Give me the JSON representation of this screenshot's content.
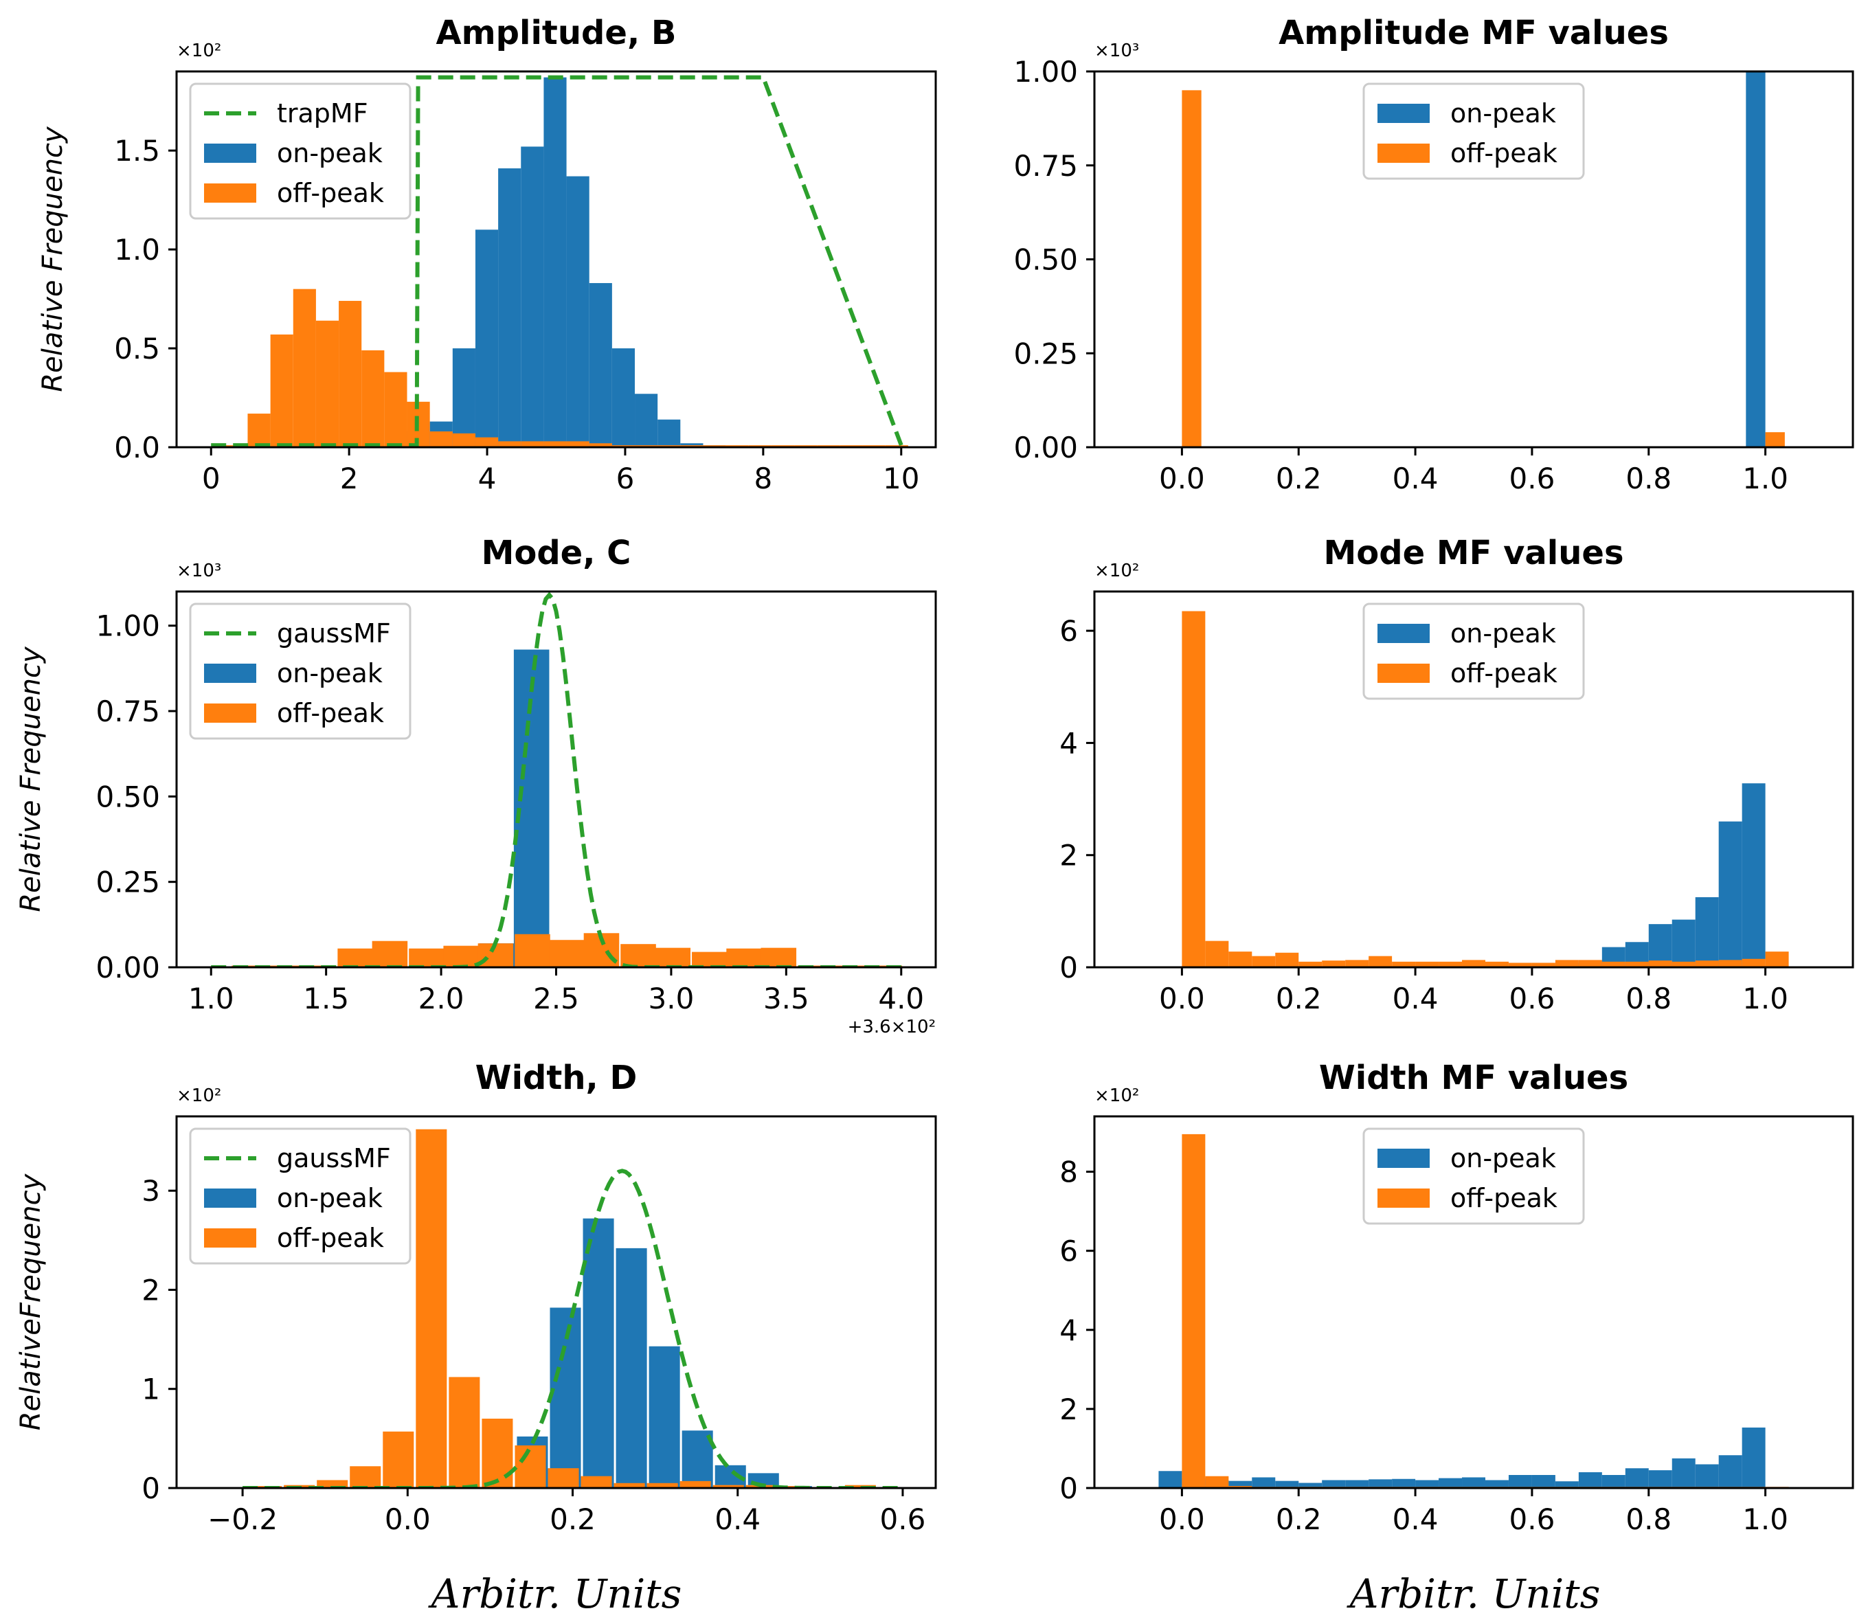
{
  "colors": {
    "on_peak": "#1f77b4",
    "off_peak": "#ff7f0e",
    "mf": "#2ca02c"
  },
  "figure_xlabel": "Arbitr. Units",
  "chart_data": [
    {
      "id": "amp",
      "type": "bar",
      "title": "Amplitude, B",
      "ylabel": "Relative Frequency",
      "xlabel": "",
      "scale_label": "×10²",
      "offset_label": "",
      "xlim": [
        -0.5,
        10.5
      ],
      "ylim": [
        0,
        1.9
      ],
      "xticks": [
        0,
        2,
        4,
        6,
        8,
        10
      ],
      "xtick_labels": [
        "0",
        "2",
        "4",
        "6",
        "8",
        "10"
      ],
      "yticks": [
        0,
        0.5,
        1.0,
        1.5
      ],
      "ytick_labels": [
        "0.0",
        "0.5",
        "1.0",
        "1.5"
      ],
      "legend": {
        "position": "upper-left",
        "entries": [
          "trapMF",
          "on-peak",
          "off-peak"
        ]
      },
      "mf": {
        "name": "trapMF",
        "kind": "trap",
        "a": 3,
        "b": 3,
        "c": 8,
        "d": 10,
        "height": 1.87
      },
      "bin_width": 0.33,
      "series": [
        {
          "name": "on-peak",
          "x": [
            0.2,
            0.53,
            0.86,
            1.19,
            1.52,
            1.85,
            2.18,
            2.51,
            2.84,
            3.17,
            3.5,
            3.83,
            4.16,
            4.49,
            4.82,
            5.15,
            5.48,
            5.81,
            6.14,
            6.47,
            6.8,
            7.13,
            7.46,
            7.79,
            8.12,
            8.45,
            8.78,
            9.11,
            9.44,
            9.77
          ],
          "values": [
            0,
            0,
            0,
            0,
            0,
            0,
            0,
            0,
            0,
            0.08,
            0.13,
            0.5,
            1.1,
            1.41,
            1.52,
            1.87,
            1.37,
            0.83,
            0.5,
            0.27,
            0.14,
            0.02,
            0.01,
            0,
            0,
            0,
            0,
            0,
            0,
            0
          ]
        },
        {
          "name": "off-peak",
          "x": [
            0.2,
            0.53,
            0.86,
            1.19,
            1.52,
            1.85,
            2.18,
            2.51,
            2.84,
            3.17,
            3.5,
            3.83,
            4.16,
            4.49,
            4.82,
            5.15,
            5.48,
            5.81,
            6.14,
            6.47,
            6.8,
            7.13,
            7.46,
            7.79,
            8.12,
            8.45,
            8.78,
            9.11,
            9.44,
            9.77
          ],
          "values": [
            0.01,
            0.17,
            0.57,
            0.8,
            0.64,
            0.74,
            0.49,
            0.38,
            0.23,
            0.08,
            0.07,
            0.05,
            0.03,
            0.03,
            0.03,
            0.03,
            0.02,
            0.01,
            0.01,
            0.01,
            0.01,
            0.01,
            0.01,
            0.01,
            0.01,
            0.01,
            0.01,
            0.01,
            0.01,
            0.01
          ]
        }
      ]
    },
    {
      "id": "ampmf",
      "type": "bar",
      "title": "Amplitude MF values",
      "ylabel": "",
      "xlabel": "",
      "scale_label": "×10³",
      "offset_label": "",
      "xlim": [
        -0.15,
        1.15
      ],
      "ylim": [
        0,
        1.0
      ],
      "xticks": [
        0,
        0.2,
        0.4,
        0.6,
        0.8,
        1.0
      ],
      "xtick_labels": [
        "0.0",
        "0.2",
        "0.4",
        "0.6",
        "0.8",
        "1.0"
      ],
      "yticks": [
        0,
        0.25,
        0.5,
        0.75,
        1.0
      ],
      "ytick_labels": [
        "0.00",
        "0.25",
        "0.50",
        "0.75",
        "1.00"
      ],
      "legend": {
        "position": "upper-center",
        "entries": [
          "on-peak",
          "off-peak"
        ]
      },
      "bin_width": 0.0333,
      "series": [
        {
          "name": "on-peak",
          "x": [
            0.0,
            1.0
          ],
          "values": [
            0,
            1.0
          ]
        },
        {
          "name": "off-peak",
          "x": [
            0.0,
            1.0
          ],
          "values": [
            0.95,
            0.04
          ]
        }
      ]
    },
    {
      "id": "mode",
      "type": "bar",
      "title": "Mode, C",
      "ylabel": "Relative Frequency",
      "xlabel": "",
      "scale_label": "×10³",
      "offset_label": "+3.6×10²",
      "xlim": [
        0.85,
        4.15
      ],
      "ylim": [
        0,
        1.1
      ],
      "xticks": [
        1.0,
        1.5,
        2.0,
        2.5,
        3.0,
        3.5,
        4.0
      ],
      "xtick_labels": [
        "1.0",
        "1.5",
        "2.0",
        "2.5",
        "3.0",
        "3.5",
        "4.0"
      ],
      "yticks": [
        0,
        0.25,
        0.5,
        0.75,
        1.0
      ],
      "ytick_labels": [
        "0.00",
        "0.25",
        "0.50",
        "0.75",
        "1.00"
      ],
      "legend": {
        "position": "upper-left",
        "entries": [
          "gaussMF",
          "on-peak",
          "off-peak"
        ]
      },
      "mf": {
        "name": "gaussMF",
        "kind": "gauss",
        "mu": 2.47,
        "sigma": 0.1,
        "height": 1.09,
        "xmin": 1.0,
        "xmax": 4.0
      },
      "bin_width": 0.154,
      "series": [
        {
          "name": "on-peak",
          "x": [
            1.09,
            1.24,
            1.39,
            1.55,
            1.7,
            1.86,
            2.01,
            2.16,
            2.32,
            2.47,
            2.62,
            2.78,
            2.93,
            3.09,
            3.24,
            3.39,
            3.55,
            3.7,
            3.85
          ],
          "values": [
            0,
            0,
            0,
            0,
            0,
            0,
            0,
            0,
            0.07,
            0.93,
            0,
            0,
            0,
            0,
            0,
            0,
            0,
            0,
            0
          ]
        },
        {
          "name": "off-peak",
          "x": [
            1.09,
            1.24,
            1.39,
            1.55,
            1.7,
            1.86,
            2.01,
            2.16,
            2.32,
            2.47,
            2.62,
            2.78,
            2.93,
            3.09,
            3.24,
            3.39,
            3.55,
            3.7,
            3.85
          ],
          "values": [
            0.005,
            0.005,
            0.005,
            0.055,
            0.077,
            0.055,
            0.063,
            0.07,
            0.097,
            0.08,
            0.1,
            0.068,
            0.057,
            0.045,
            0.055,
            0.057,
            0.005,
            0.005,
            0.005
          ]
        }
      ]
    },
    {
      "id": "modemf",
      "type": "bar",
      "title": "Mode MF values",
      "ylabel": "",
      "xlabel": "",
      "scale_label": "×10²",
      "offset_label": "",
      "xlim": [
        -0.15,
        1.15
      ],
      "ylim": [
        0,
        6.7
      ],
      "xticks": [
        0,
        0.2,
        0.4,
        0.6,
        0.8,
        1.0
      ],
      "xtick_labels": [
        "0.0",
        "0.2",
        "0.4",
        "0.6",
        "0.8",
        "1.0"
      ],
      "yticks": [
        0,
        2,
        4,
        6
      ],
      "ytick_labels": [
        "0",
        "2",
        "4",
        "6"
      ],
      "legend": {
        "position": "upper-center",
        "entries": [
          "on-peak",
          "off-peak"
        ]
      },
      "bin_width": 0.04,
      "series": [
        {
          "name": "on-peak",
          "x": [
            0.0,
            0.04,
            0.08,
            0.12,
            0.16,
            0.2,
            0.24,
            0.28,
            0.32,
            0.36,
            0.4,
            0.44,
            0.48,
            0.52,
            0.56,
            0.6,
            0.64,
            0.68,
            0.72,
            0.76,
            0.8,
            0.84,
            0.88,
            0.92,
            0.96,
            1.0
          ],
          "values": [
            0,
            0,
            0,
            0,
            0,
            0,
            0,
            0,
            0,
            0,
            0,
            0,
            0,
            0,
            0,
            0,
            0.04,
            0.08,
            0.12,
            0.36,
            0.45,
            0.77,
            0.85,
            1.25,
            2.6,
            3.28
          ]
        },
        {
          "name": "off-peak",
          "x": [
            0.0,
            0.04,
            0.08,
            0.12,
            0.16,
            0.2,
            0.24,
            0.28,
            0.32,
            0.36,
            0.4,
            0.44,
            0.48,
            0.52,
            0.56,
            0.6,
            0.64,
            0.68,
            0.72,
            0.76,
            0.8,
            0.84,
            0.88,
            0.92,
            0.96,
            1.0
          ],
          "values": [
            6.35,
            0.47,
            0.28,
            0.2,
            0.26,
            0.1,
            0.12,
            0.13,
            0.2,
            0.1,
            0.1,
            0.1,
            0.13,
            0.1,
            0.08,
            0.08,
            0.13,
            0.13,
            0.1,
            0.1,
            0.12,
            0.1,
            0.12,
            0.13,
            0.15,
            0.28
          ]
        }
      ]
    },
    {
      "id": "width",
      "type": "bar",
      "title": "Width, D",
      "ylabel": "RelativeFrequency",
      "xlabel": "",
      "scale_label": "×10²",
      "offset_label": "",
      "xlim": [
        -0.28,
        0.64
      ],
      "ylim": [
        0,
        3.75
      ],
      "xticks": [
        -0.2,
        0.0,
        0.2,
        0.4,
        0.6
      ],
      "xtick_labels": [
        "−0.2",
        "0.0",
        "0.2",
        "0.4",
        "0.6"
      ],
      "yticks": [
        0,
        1,
        2,
        3
      ],
      "ytick_labels": [
        "0",
        "1",
        "2",
        "3"
      ],
      "legend": {
        "position": "upper-left",
        "entries": [
          "gaussMF",
          "on-peak",
          "off-peak"
        ]
      },
      "mf": {
        "name": "gaussMF",
        "kind": "gauss",
        "mu": 0.26,
        "sigma": 0.055,
        "height": 3.2,
        "xmin": -0.2,
        "xmax": 0.6
      },
      "bin_width": 0.0375,
      "series": [
        {
          "name": "on-peak",
          "x": [
            -0.19,
            -0.15,
            -0.11,
            -0.07,
            -0.03,
            0.01,
            0.05,
            0.09,
            0.13,
            0.17,
            0.21,
            0.25,
            0.29,
            0.33,
            0.37,
            0.41,
            0.45,
            0.49,
            0.53,
            0.57
          ],
          "values": [
            0,
            0,
            0,
            0,
            0,
            0,
            0,
            0,
            0,
            0.52,
            1.82,
            2.72,
            2.42,
            1.43,
            0.58,
            0.23,
            0.15,
            0.02,
            0.01,
            0.01
          ]
        },
        {
          "name": "off-peak",
          "x": [
            -0.19,
            -0.15,
            -0.11,
            -0.07,
            -0.03,
            0.01,
            0.05,
            0.09,
            0.13,
            0.17,
            0.21,
            0.25,
            0.29,
            0.33,
            0.37,
            0.41,
            0.45,
            0.49,
            0.53,
            0.57
          ],
          "values": [
            0.02,
            0.03,
            0.08,
            0.22,
            0.57,
            3.62,
            1.12,
            0.7,
            0.43,
            0.2,
            0.12,
            0.05,
            0.05,
            0.07,
            0.03,
            0.03,
            0.02,
            0.01,
            0.03,
            0.01
          ]
        }
      ]
    },
    {
      "id": "widthmf",
      "type": "bar",
      "title": "Width MF values",
      "ylabel": "",
      "xlabel": "",
      "scale_label": "×10²",
      "offset_label": "",
      "xlim": [
        -0.15,
        1.15
      ],
      "ylim": [
        0,
        9.4
      ],
      "xticks": [
        0,
        0.2,
        0.4,
        0.6,
        0.8,
        1.0
      ],
      "xtick_labels": [
        "0.0",
        "0.2",
        "0.4",
        "0.6",
        "0.8",
        "1.0"
      ],
      "yticks": [
        0,
        2,
        4,
        6,
        8
      ],
      "ytick_labels": [
        "0",
        "2",
        "4",
        "6",
        "8"
      ],
      "legend": {
        "position": "upper-center",
        "entries": [
          "on-peak",
          "off-peak"
        ]
      },
      "bin_width": 0.04,
      "series": [
        {
          "name": "on-peak",
          "x": [
            0.0,
            0.04,
            0.08,
            0.12,
            0.16,
            0.2,
            0.24,
            0.28,
            0.32,
            0.36,
            0.4,
            0.44,
            0.48,
            0.52,
            0.56,
            0.6,
            0.64,
            0.68,
            0.72,
            0.76,
            0.8,
            0.84,
            0.88,
            0.92,
            0.96,
            1.0
          ],
          "values": [
            0.43,
            0.25,
            0.2,
            0.18,
            0.27,
            0.18,
            0.13,
            0.2,
            0.2,
            0.22,
            0.23,
            0.2,
            0.25,
            0.27,
            0.2,
            0.33,
            0.33,
            0.17,
            0.4,
            0.33,
            0.5,
            0.45,
            0.75,
            0.6,
            0.83,
            1.53
          ]
        },
        {
          "name": "off-peak",
          "x": [
            0.0,
            0.04,
            0.08,
            0.12,
            0.16,
            0.2,
            0.24,
            0.28,
            0.32,
            0.36,
            0.4,
            0.44,
            0.48,
            0.52,
            0.56,
            0.6,
            0.64,
            0.68,
            0.72,
            0.76,
            0.8,
            0.84,
            0.88,
            0.92,
            0.96,
            1.0
          ],
          "values": [
            8.95,
            0.3,
            0.05,
            0.03,
            0.03,
            0.03,
            0.03,
            0.03,
            0.03,
            0.03,
            0.03,
            0.03,
            0.03,
            0.03,
            0.03,
            0.03,
            0.03,
            0.03,
            0.03,
            0.03,
            0.03,
            0.03,
            0.03,
            0.03,
            0.03,
            0.03
          ]
        }
      ]
    }
  ]
}
